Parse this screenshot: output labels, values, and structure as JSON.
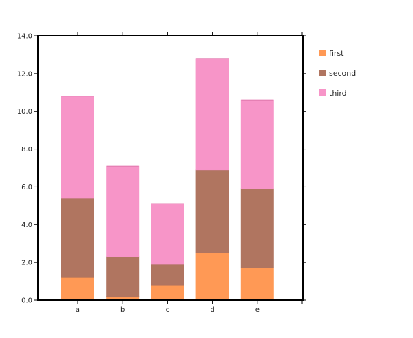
{
  "chart_data": {
    "type": "bar",
    "stacked": true,
    "categories": [
      "a",
      "b",
      "c",
      "d",
      "e"
    ],
    "series": [
      {
        "name": "first",
        "values": [
          1.2,
          0.2,
          0.8,
          2.5,
          1.7
        ],
        "color": "#ff9955"
      },
      {
        "name": "second",
        "values": [
          4.2,
          2.1,
          1.1,
          4.4,
          4.2
        ],
        "color": "#b07560"
      },
      {
        "name": "third",
        "values": [
          5.4,
          4.8,
          3.2,
          5.9,
          4.7
        ],
        "color": "#f795c8"
      }
    ],
    "ylim": [
      0,
      14
    ],
    "yticks": [
      "0.0",
      "2.0",
      "4.0",
      "6.0",
      "8.0",
      "10.0",
      "12.0",
      "14.0"
    ],
    "grid": false,
    "legend_position": "right-top",
    "title": "",
    "xlabel": "",
    "ylabel": ""
  }
}
